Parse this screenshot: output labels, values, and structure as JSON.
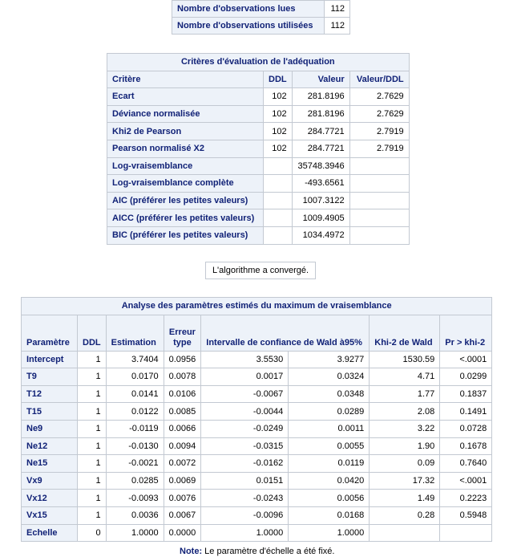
{
  "obs": {
    "rows": [
      {
        "label": "Nombre d'observations lues",
        "value": "112"
      },
      {
        "label": "Nombre d'observations utilisées",
        "value": "112"
      }
    ]
  },
  "fit": {
    "title": "Critères d'évaluation de l'adéquation",
    "headers": [
      "Critère",
      "DDL",
      "Valeur",
      "Valeur/DDL"
    ],
    "rows": [
      [
        "Ecart",
        "102",
        "281.8196",
        "2.7629"
      ],
      [
        "Déviance normalisée",
        "102",
        "281.8196",
        "2.7629"
      ],
      [
        "Khi2 de Pearson",
        "102",
        "284.7721",
        "2.7919"
      ],
      [
        "Pearson normalisé X2",
        "102",
        "284.7721",
        "2.7919"
      ],
      [
        "Log-vraisemblance",
        "",
        "35748.3946",
        ""
      ],
      [
        "Log-vraisemblance complète",
        "",
        "-493.6561",
        ""
      ],
      [
        "AIC (préférer les petites valeurs)",
        "",
        "1007.3122",
        ""
      ],
      [
        "AICC (préférer les petites valeurs)",
        "",
        "1009.4905",
        ""
      ],
      [
        "BIC (préférer les petites valeurs)",
        "",
        "1034.4972",
        ""
      ]
    ]
  },
  "convergence": "L'algorithme a convergé.",
  "params": {
    "title": "Analyse des paramètres estimés du maximum de vraisemblance",
    "headers": [
      "Paramètre",
      "DDL",
      "Estimation",
      "Erreur type",
      "Intervalle de confiance de Wald à95%",
      "Khi-2 de Wald",
      "Pr > khi-2"
    ],
    "rows": [
      [
        "Intercept",
        "1",
        "3.7404",
        "0.0956",
        "3.5530",
        "3.9277",
        "1530.59",
        "<.0001"
      ],
      [
        "T9",
        "1",
        "0.0170",
        "0.0078",
        "0.0017",
        "0.0324",
        "4.71",
        "0.0299"
      ],
      [
        "T12",
        "1",
        "0.0141",
        "0.0106",
        "-0.0067",
        "0.0348",
        "1.77",
        "0.1837"
      ],
      [
        "T15",
        "1",
        "0.0122",
        "0.0085",
        "-0.0044",
        "0.0289",
        "2.08",
        "0.1491"
      ],
      [
        "Ne9",
        "1",
        "-0.0119",
        "0.0066",
        "-0.0249",
        "0.0011",
        "3.22",
        "0.0728"
      ],
      [
        "Ne12",
        "1",
        "-0.0130",
        "0.0094",
        "-0.0315",
        "0.0055",
        "1.90",
        "0.1678"
      ],
      [
        "Ne15",
        "1",
        "-0.0021",
        "0.0072",
        "-0.0162",
        "0.0119",
        "0.09",
        "0.7640"
      ],
      [
        "Vx9",
        "1",
        "0.0285",
        "0.0069",
        "0.0151",
        "0.0420",
        "17.32",
        "<.0001"
      ],
      [
        "Vx12",
        "1",
        "-0.0093",
        "0.0076",
        "-0.0243",
        "0.0056",
        "1.49",
        "0.2223"
      ],
      [
        "Vx15",
        "1",
        "0.0036",
        "0.0067",
        "-0.0096",
        "0.0168",
        "0.28",
        "0.5948"
      ],
      [
        "Echelle",
        "0",
        "1.0000",
        "0.0000",
        "1.0000",
        "1.0000",
        "",
        ""
      ]
    ]
  },
  "note": {
    "label": "Note:",
    "text": "Le paramètre d'échelle a été fixé."
  }
}
